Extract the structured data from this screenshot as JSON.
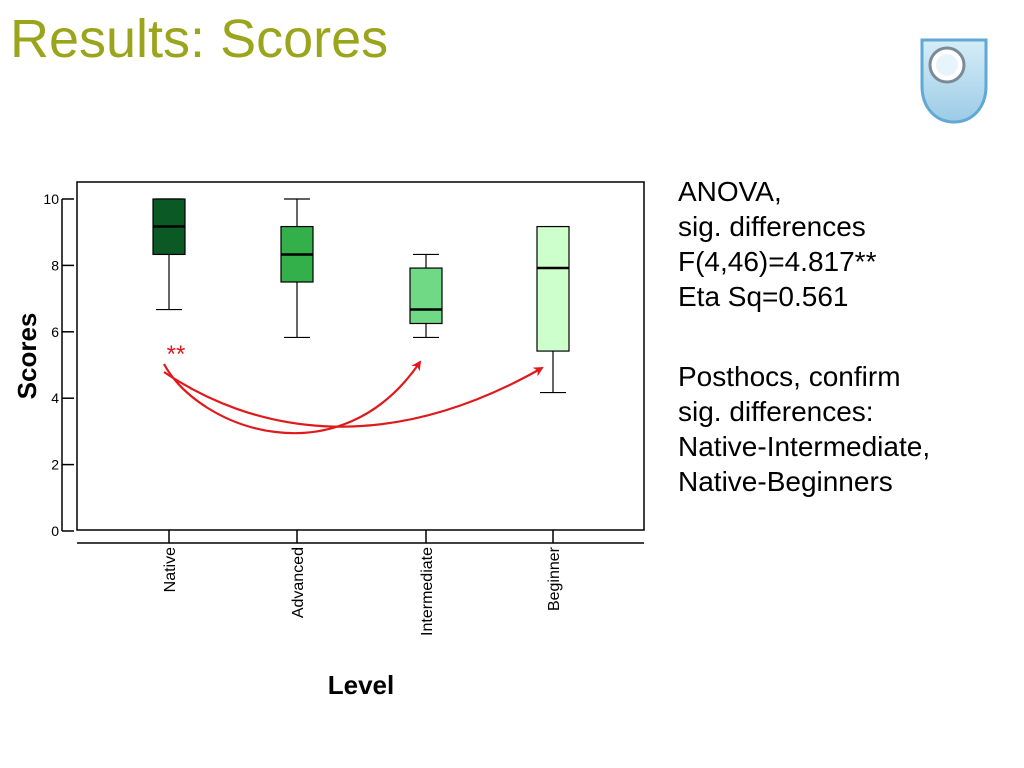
{
  "slide": {
    "title": "Results: Scores"
  },
  "logo": {
    "icon": "open-university-shield-icon",
    "colors": {
      "fill": "#b8dcef",
      "edge": "#5fa9d4",
      "ring": "#ffffff"
    }
  },
  "notes": {
    "lines_a": [
      "ANOVA,",
      "sig. differences",
      "F(4,46)=4.817**",
      "Eta Sq=0.561"
    ],
    "lines_b": [
      "Posthocs, confirm",
      "sig. differences:",
      "Native-Intermediate,",
      "Native-Beginners"
    ]
  },
  "chart_data": {
    "type": "boxplot",
    "xlabel": "Level",
    "ylabel": "Scores",
    "ylim": [
      0,
      10
    ],
    "yticks": [
      0,
      2,
      4,
      6,
      8,
      10
    ],
    "categories": [
      "Native",
      "Advanced",
      "Intermediate",
      "Beginner"
    ],
    "boxes": [
      {
        "category": "Native",
        "min": 6.67,
        "q1": 8.33,
        "median": 9.17,
        "q3": 10,
        "max": 10,
        "color": "#0b5a26"
      },
      {
        "category": "Advanced",
        "min": 5.83,
        "q1": 7.5,
        "median": 8.33,
        "q3": 9.17,
        "max": 10,
        "color": "#33b04a"
      },
      {
        "category": "Intermediate",
        "min": 5.83,
        "q1": 6.25,
        "median": 6.67,
        "q3": 7.92,
        "max": 8.33,
        "color": "#6fd985"
      },
      {
        "category": "Beginner",
        "min": 4.17,
        "q1": 5.42,
        "median": 7.92,
        "q3": 9.17,
        "max": 9.17,
        "color": "#ccffcc"
      }
    ],
    "annotation": {
      "text": "**",
      "color": "#e0191b",
      "arrows": [
        {
          "from": "Native",
          "to": "Intermediate"
        },
        {
          "from": "Native",
          "to": "Beginner"
        }
      ]
    }
  }
}
